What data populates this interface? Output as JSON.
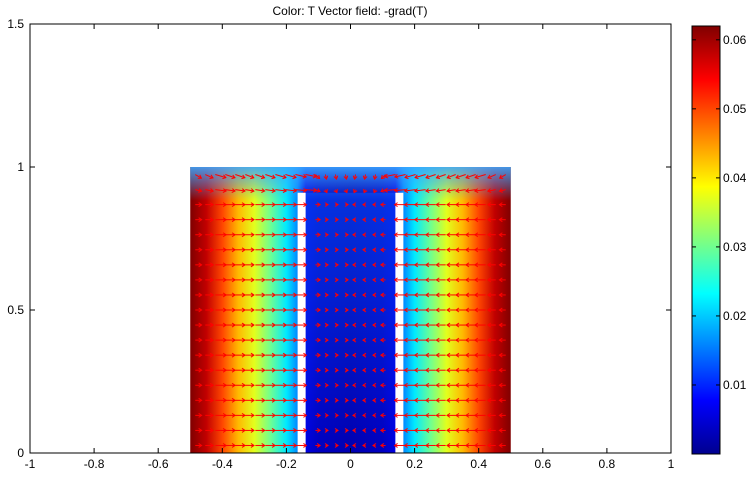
{
  "chart_data": {
    "type": "heatmap",
    "title": "Color: T  Vector field: -grad(T)",
    "xlabel": "",
    "ylabel": "",
    "xlim": [
      -1,
      1
    ],
    "ylim": [
      0,
      1.5
    ],
    "x_ticks": [
      -1,
      -0.8,
      -0.6,
      -0.4,
      -0.2,
      0,
      0.2,
      0.4,
      0.6,
      0.8,
      1
    ],
    "x_tick_labels": [
      "-1",
      "-0.8",
      "-0.6",
      "-0.4",
      "-0.2",
      "0",
      "0.2",
      "0.4",
      "0.6",
      "0.8",
      "1"
    ],
    "y_ticks": [
      0,
      0.5,
      1,
      1.5
    ],
    "y_tick_labels": [
      "0",
      "0.5",
      "1",
      "1.5"
    ],
    "colorbar": {
      "range": [
        0,
        0.062
      ],
      "ticks": [
        0.01,
        0.02,
        0.03,
        0.04,
        0.05,
        0.06
      ],
      "tick_labels": [
        "0.01",
        "0.02",
        "0.03",
        "0.04",
        "0.05",
        "0.06"
      ],
      "colormap": "jet"
    },
    "domain": {
      "x": [
        -0.5,
        0.5
      ],
      "y": [
        0,
        1
      ]
    },
    "slits": [
      {
        "x": [
          -0.165,
          -0.14
        ],
        "y": [
          0,
          0.91
        ]
      },
      {
        "x": [
          0.14,
          0.165
        ],
        "y": [
          0,
          0.91
        ]
      }
    ],
    "temperature_profile": {
      "x": [
        -0.5,
        -0.45,
        -0.4,
        -0.35,
        -0.3,
        -0.25,
        -0.2,
        -0.165,
        -0.14,
        -0.1,
        0,
        0.1,
        0.14,
        0.165,
        0.2,
        0.25,
        0.3,
        0.35,
        0.4,
        0.45,
        0.5
      ],
      "T": [
        0.062,
        0.058,
        0.05,
        0.043,
        0.037,
        0.03,
        0.022,
        0.016,
        0.006,
        0.004,
        0.003,
        0.004,
        0.006,
        0.016,
        0.022,
        0.03,
        0.037,
        0.043,
        0.05,
        0.058,
        0.062
      ]
    },
    "vector_field": {
      "label": "-grad(T)",
      "color": "#ff0000",
      "nx": 32,
      "ny": 19
    }
  }
}
